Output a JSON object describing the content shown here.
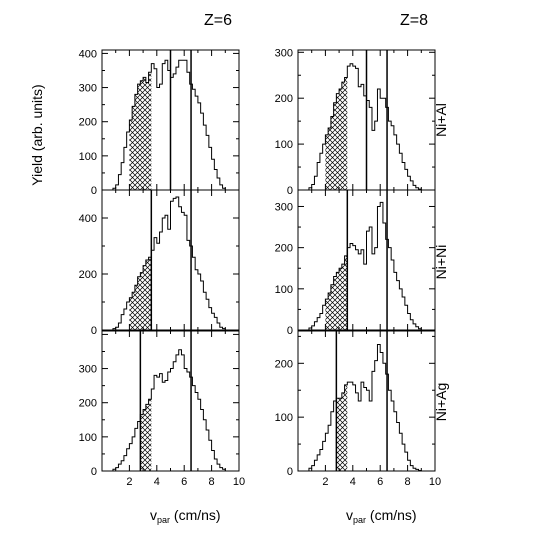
{
  "figure": {
    "ylabel": "Yield (arb. units)",
    "xlabel_main": "v",
    "xlabel_sub": "par",
    "xlabel_unit": " (cm/ns)",
    "shading": "cross-hatch",
    "colors": {
      "line": "#000000",
      "hatch": "#000000",
      "background": "#ffffff"
    }
  },
  "chart_data": [
    {
      "type": "histogram",
      "column_label": "Z=6",
      "row_label": "Ni+Al",
      "xlim": [
        0,
        10
      ],
      "ylim": [
        0,
        410
      ],
      "xticks": [
        2,
        4,
        6,
        8,
        10
      ],
      "yticks": [
        0,
        100,
        200,
        300,
        400
      ],
      "bin_edges": [
        0.8,
        1.0,
        1.2,
        1.4,
        1.6,
        1.8,
        2.0,
        2.2,
        2.4,
        2.6,
        2.8,
        3.0,
        3.2,
        3.4,
        3.6,
        3.8,
        4.0,
        4.2,
        4.4,
        4.6,
        4.8,
        5.0,
        5.2,
        5.4,
        5.6,
        5.8,
        6.0,
        6.2,
        6.4,
        6.6,
        6.8,
        7.0,
        7.2,
        7.4,
        7.6,
        7.8,
        8.0,
        8.2,
        8.4,
        8.6,
        8.8,
        9.0
      ],
      "counts": [
        5,
        15,
        45,
        80,
        125,
        170,
        205,
        245,
        280,
        310,
        320,
        330,
        315,
        345,
        370,
        355,
        300,
        310,
        370,
        380,
        350,
        330,
        340,
        360,
        380,
        380,
        380,
        345,
        310,
        295,
        275,
        255,
        225,
        190,
        160,
        125,
        90,
        60,
        35,
        15,
        5
      ],
      "hatched_range": [
        2.0,
        3.6
      ],
      "vlines": [
        5.0,
        6.5
      ]
    },
    {
      "type": "histogram",
      "column_label": "Z=8",
      "row_label": "Ni+Al",
      "xlim": [
        0,
        10
      ],
      "ylim": [
        0,
        305
      ],
      "xticks": [
        2,
        4,
        6,
        8,
        10
      ],
      "yticks": [
        0,
        100,
        200,
        300
      ],
      "bin_edges": [
        0.8,
        1.0,
        1.2,
        1.4,
        1.6,
        1.8,
        2.0,
        2.2,
        2.4,
        2.6,
        2.8,
        3.0,
        3.2,
        3.4,
        3.6,
        3.8,
        4.0,
        4.2,
        4.4,
        4.6,
        4.8,
        5.0,
        5.2,
        5.4,
        5.6,
        5.8,
        6.0,
        6.2,
        6.4,
        6.6,
        6.8,
        7.0,
        7.2,
        7.4,
        7.6,
        7.8,
        8.0,
        8.2,
        8.4,
        8.6,
        8.8,
        9.0
      ],
      "counts": [
        5,
        12,
        30,
        60,
        80,
        100,
        120,
        135,
        160,
        190,
        210,
        220,
        235,
        245,
        270,
        275,
        270,
        265,
        225,
        230,
        205,
        195,
        180,
        130,
        150,
        220,
        200,
        200,
        180,
        150,
        140,
        120,
        100,
        80,
        60,
        45,
        30,
        20,
        10,
        5,
        2
      ],
      "hatched_range": [
        2.0,
        3.6
      ],
      "vlines": [
        5.0,
        6.5
      ]
    },
    {
      "type": "histogram",
      "column_label": "Z=6",
      "row_label": "Ni+Ni",
      "xlim": [
        0,
        10
      ],
      "ylim": [
        0,
        500
      ],
      "xticks": [
        2,
        4,
        6,
        8,
        10
      ],
      "yticks": [
        0,
        200,
        400
      ],
      "bin_edges": [
        0.8,
        1.0,
        1.2,
        1.4,
        1.6,
        1.8,
        2.0,
        2.2,
        2.4,
        2.6,
        2.8,
        3.0,
        3.2,
        3.4,
        3.6,
        3.8,
        4.0,
        4.2,
        4.4,
        4.6,
        4.8,
        5.0,
        5.2,
        5.4,
        5.6,
        5.8,
        6.0,
        6.2,
        6.4,
        6.6,
        6.8,
        7.0,
        7.2,
        7.4,
        7.6,
        7.8,
        8.0,
        8.2,
        8.4,
        8.6,
        8.8,
        9.0
      ],
      "counts": [
        5,
        10,
        25,
        55,
        75,
        100,
        115,
        135,
        160,
        190,
        205,
        230,
        250,
        260,
        285,
        330,
        310,
        350,
        400,
        410,
        360,
        460,
        470,
        475,
        440,
        420,
        410,
        320,
        300,
        260,
        215,
        200,
        175,
        135,
        110,
        80,
        60,
        45,
        25,
        10,
        5
      ],
      "hatched_range": [
        2.0,
        3.6
      ],
      "vlines": [
        3.6,
        6.5
      ]
    },
    {
      "type": "histogram",
      "column_label": "Z=8",
      "row_label": "Ni+Ni",
      "xlim": [
        0,
        10
      ],
      "ylim": [
        0,
        340
      ],
      "xticks": [
        2,
        4,
        6,
        8,
        10
      ],
      "yticks": [
        0,
        100,
        200,
        300
      ],
      "bin_edges": [
        0.8,
        1.0,
        1.2,
        1.4,
        1.6,
        1.8,
        2.0,
        2.2,
        2.4,
        2.6,
        2.8,
        3.0,
        3.2,
        3.4,
        3.6,
        3.8,
        4.0,
        4.2,
        4.4,
        4.6,
        4.8,
        5.0,
        5.2,
        5.4,
        5.6,
        5.8,
        6.0,
        6.2,
        6.4,
        6.6,
        6.8,
        7.0,
        7.2,
        7.4,
        7.6,
        7.8,
        8.0,
        8.2,
        8.4,
        8.6,
        8.8,
        9.0
      ],
      "counts": [
        5,
        10,
        20,
        30,
        40,
        60,
        75,
        90,
        110,
        130,
        140,
        150,
        160,
        180,
        200,
        210,
        205,
        195,
        185,
        195,
        160,
        240,
        250,
        185,
        200,
        300,
        310,
        260,
        220,
        200,
        170,
        140,
        120,
        100,
        80,
        60,
        40,
        25,
        15,
        8,
        3
      ],
      "hatched_range": [
        2.0,
        3.6
      ],
      "vlines": [
        3.6,
        6.5
      ]
    },
    {
      "type": "histogram",
      "column_label": "Z=6",
      "row_label": "Ni+Ag",
      "xlim": [
        0,
        10
      ],
      "ylim": [
        0,
        410
      ],
      "xticks": [
        2,
        4,
        6,
        8,
        10
      ],
      "yticks": [
        0,
        100,
        200,
        300
      ],
      "bin_edges": [
        0.8,
        1.0,
        1.2,
        1.4,
        1.6,
        1.8,
        2.0,
        2.2,
        2.4,
        2.6,
        2.8,
        3.0,
        3.2,
        3.4,
        3.6,
        3.8,
        4.0,
        4.2,
        4.4,
        4.6,
        4.8,
        5.0,
        5.2,
        5.4,
        5.6,
        5.8,
        6.0,
        6.2,
        6.4,
        6.6,
        6.8,
        7.0,
        7.2,
        7.4,
        7.6,
        7.8,
        8.0,
        8.2,
        8.4,
        8.6,
        8.8,
        9.0
      ],
      "counts": [
        5,
        10,
        20,
        30,
        45,
        65,
        80,
        100,
        125,
        145,
        165,
        180,
        195,
        210,
        240,
        280,
        275,
        285,
        260,
        265,
        290,
        300,
        320,
        340,
        355,
        340,
        300,
        290,
        275,
        250,
        230,
        210,
        180,
        150,
        120,
        90,
        60,
        35,
        20,
        10,
        5
      ],
      "hatched_range": [
        2.8,
        3.6
      ],
      "vlines": [
        2.8,
        6.5
      ]
    },
    {
      "type": "histogram",
      "column_label": "Z=8",
      "row_label": "Ni+Ag",
      "xlim": [
        0,
        10
      ],
      "ylim": [
        0,
        260
      ],
      "xticks": [
        2,
        4,
        6,
        8,
        10
      ],
      "yticks": [
        0,
        100,
        200
      ],
      "bin_edges": [
        0.8,
        1.0,
        1.2,
        1.4,
        1.6,
        1.8,
        2.0,
        2.2,
        2.4,
        2.6,
        2.8,
        3.0,
        3.2,
        3.4,
        3.6,
        3.8,
        4.0,
        4.2,
        4.4,
        4.6,
        4.8,
        5.0,
        5.2,
        5.4,
        5.6,
        5.8,
        6.0,
        6.2,
        6.4,
        6.6,
        6.8,
        7.0,
        7.2,
        7.4,
        7.6,
        7.8,
        8.0,
        8.2,
        8.4,
        8.6,
        8.8,
        9.0
      ],
      "counts": [
        5,
        10,
        20,
        30,
        40,
        55,
        70,
        85,
        110,
        130,
        135,
        135,
        145,
        160,
        165,
        165,
        160,
        145,
        130,
        165,
        155,
        150,
        130,
        185,
        205,
        235,
        220,
        200,
        180,
        150,
        130,
        110,
        90,
        70,
        50,
        35,
        20,
        10,
        5,
        3,
        1
      ],
      "hatched_range": [
        2.8,
        3.6
      ],
      "vlines": [
        2.8,
        6.5
      ]
    }
  ]
}
